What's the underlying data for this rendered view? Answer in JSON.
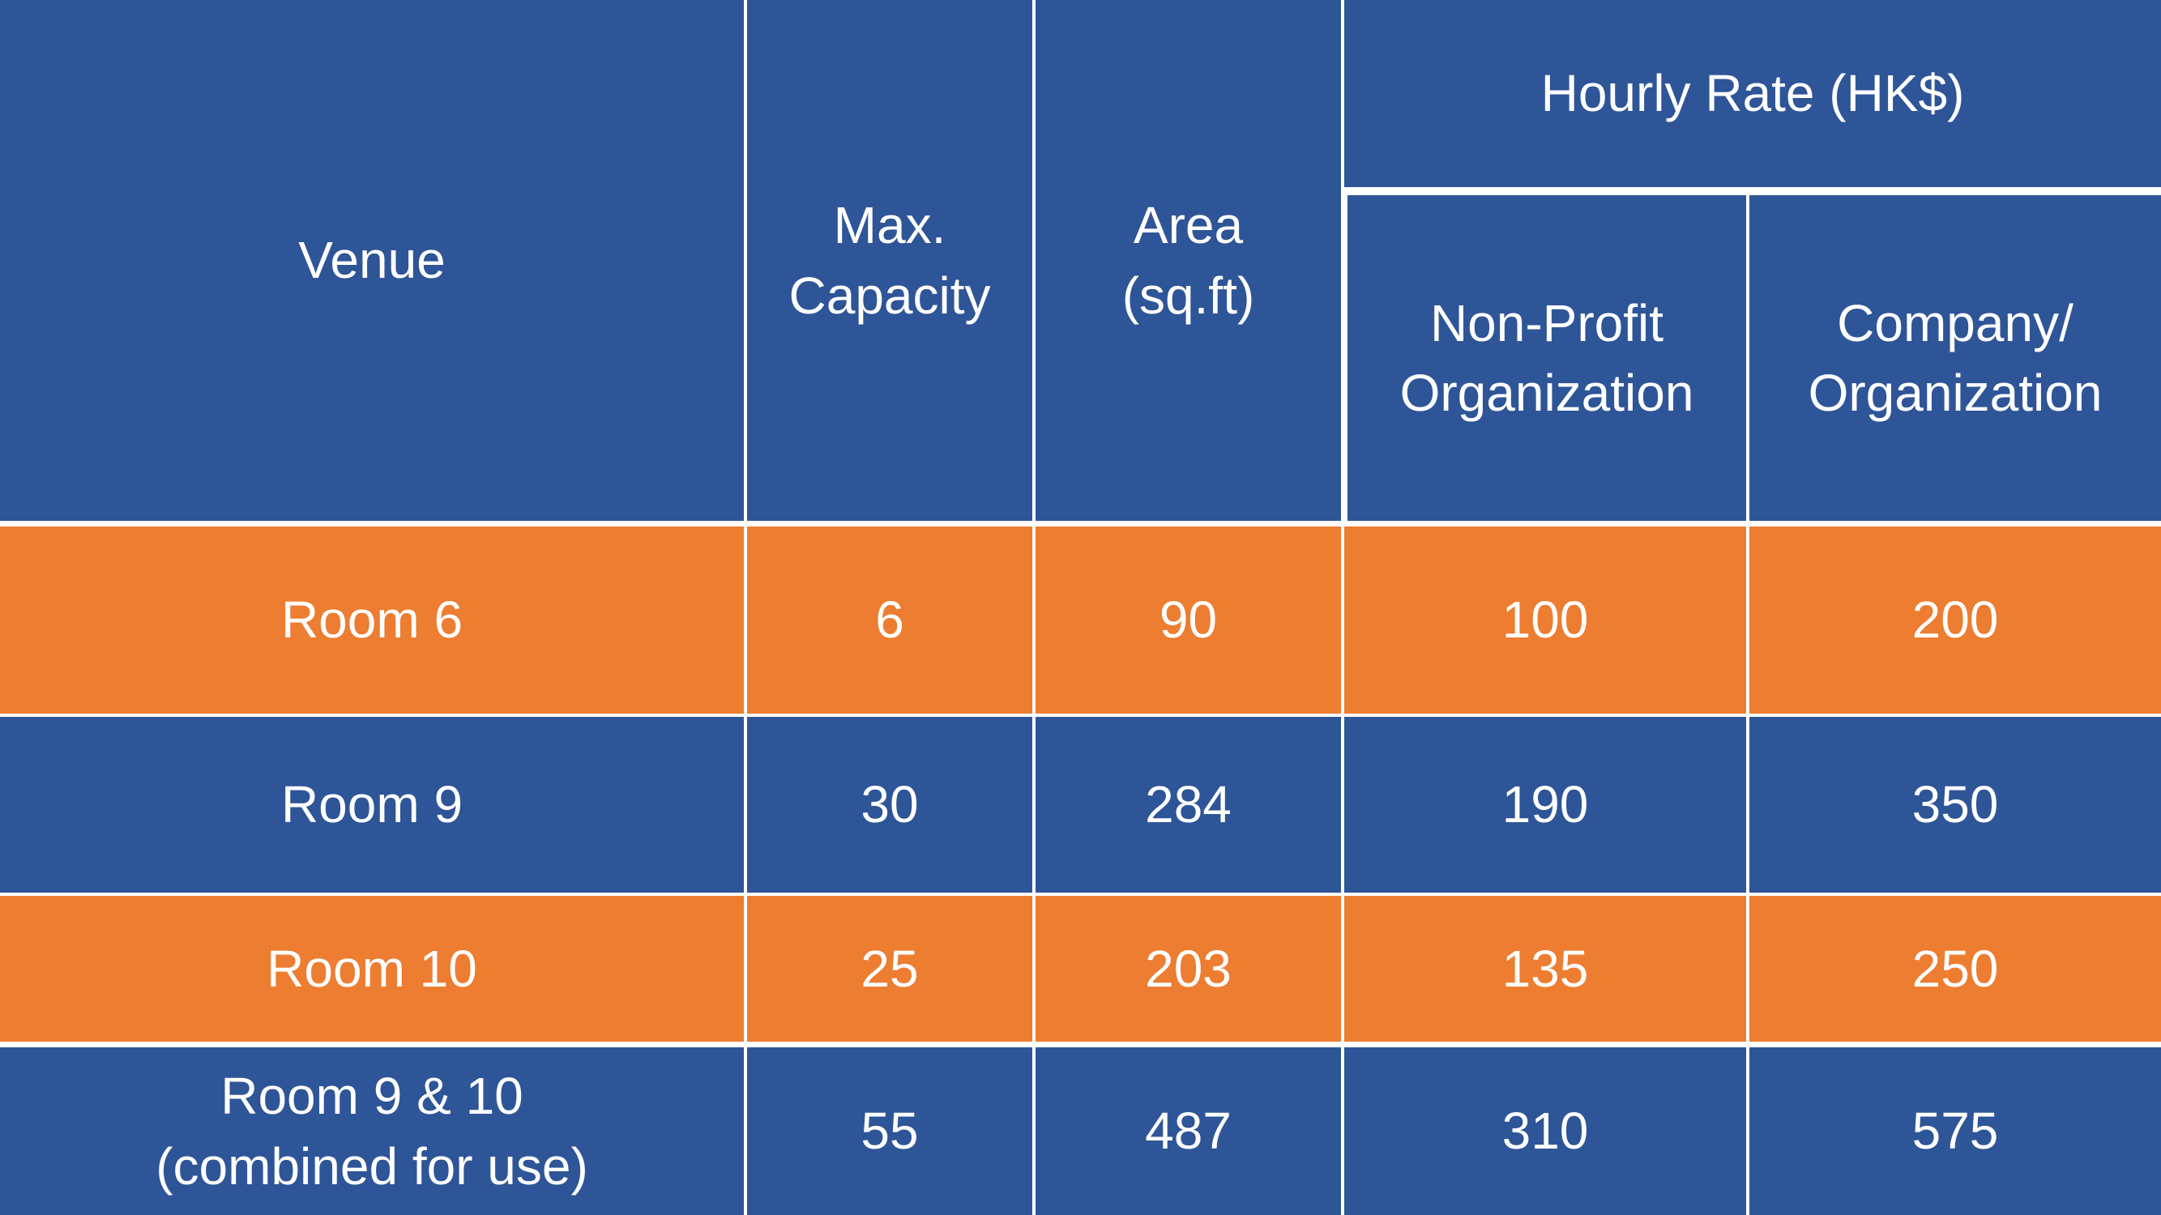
{
  "table": {
    "header": {
      "venue": "Venue",
      "max_capacity": "Max.\nCapacity",
      "area": "Area\n(sq.ft)",
      "hourly_rate": "Hourly Rate (HK$)",
      "non_profit": "Non-Profit\nOrganization",
      "company": "Company/\nOrganization"
    },
    "rows": [
      {
        "venue": "Room 6",
        "capacity": "6",
        "area": "90",
        "non_profit": "100",
        "company": "200"
      },
      {
        "venue": "Room 9",
        "capacity": "30",
        "area": "284",
        "non_profit": "190",
        "company": "350"
      },
      {
        "venue": "Room 10",
        "capacity": "25",
        "area": "203",
        "non_profit": "135",
        "company": "250"
      },
      {
        "venue": "Room 9 & 10\n(combined for use)",
        "capacity": "55",
        "area": "487",
        "non_profit": "310",
        "company": "575"
      }
    ]
  },
  "colors": {
    "header_row": "#2e5597",
    "odd_row": "#ed7d31",
    "even_row": "#2e5597",
    "text": "#ffffff",
    "grid_lines": "#ffffff"
  }
}
